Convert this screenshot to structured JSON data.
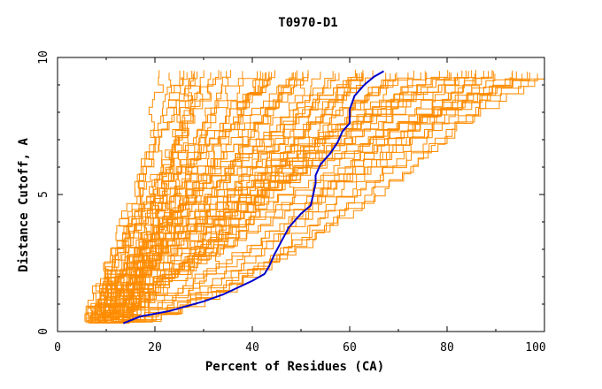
{
  "chart_data": {
    "type": "line",
    "title": "T0970-D1",
    "xlabel": "Percent of Residues (CA)",
    "ylabel": "Distance Cutoff, A",
    "xlim": [
      0,
      100
    ],
    "ylim": [
      0,
      10
    ],
    "xticks": [
      "0",
      "20",
      "40",
      "60",
      "80",
      "100"
    ],
    "yticks": [
      "0",
      "5",
      "10"
    ],
    "colors": {
      "background": "#ffffff",
      "others": "#ff8c00",
      "highlight": "#0000cc",
      "axis": "#000000"
    },
    "highlight_series": {
      "name": "",
      "x": [
        13.5,
        17,
        20,
        23,
        26,
        30,
        34,
        37,
        40,
        42.5,
        43.5,
        44.5,
        46,
        47.5,
        50,
        52,
        52.5,
        53,
        53,
        54,
        56,
        57.5,
        58.5,
        60,
        60,
        61,
        63,
        65,
        67
      ],
      "y": [
        0.3,
        0.55,
        0.65,
        0.75,
        0.9,
        1.1,
        1.35,
        1.6,
        1.85,
        2.1,
        2.4,
        2.8,
        3.3,
        3.8,
        4.3,
        4.6,
        5.0,
        5.4,
        5.7,
        6.1,
        6.5,
        6.9,
        7.3,
        7.6,
        8.1,
        8.6,
        9.0,
        9.3,
        9.5
      ]
    },
    "other_series_count": 80,
    "other_series_family": [
      {
        "x0": 6,
        "x_end": 18,
        "shape": 0.7
      },
      {
        "x0": 100,
        "x_end": 100,
        "shape": 1.0
      }
    ]
  }
}
